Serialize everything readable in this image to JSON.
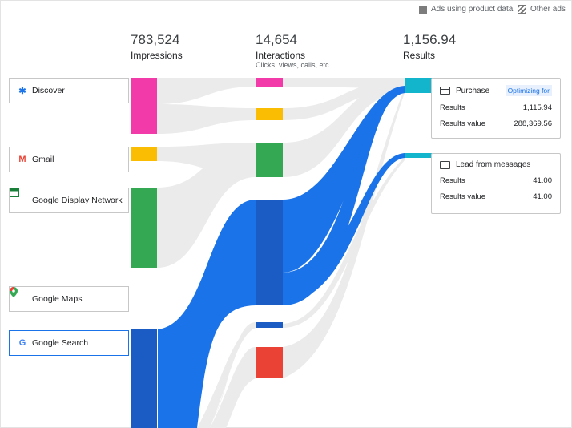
{
  "legend": {
    "product_data_label": "Ads using product data",
    "other_ads_label": "Other ads"
  },
  "stages": [
    {
      "value": "783,524",
      "label": "Impressions",
      "sublabel": ""
    },
    {
      "value": "14,654",
      "label": "Interactions",
      "sublabel": "Clicks, views, calls, etc."
    },
    {
      "value": "1,156.94",
      "label": "Results",
      "sublabel": ""
    }
  ],
  "sources": [
    {
      "name": "Discover",
      "color": "#F23BA8",
      "icon": "discover-icon",
      "icon_color": "#1a73e8"
    },
    {
      "name": "Gmail",
      "color": "#FBBC04",
      "icon": "gmail-icon",
      "icon_color": "#ea4335"
    },
    {
      "name": "Google Display Network",
      "color": "#34A853",
      "icon": "display-network-icon",
      "icon_color": "#188038"
    },
    {
      "name": "Google Maps",
      "color": "#34A853",
      "icon": "maps-pin-icon",
      "icon_color": "#34a853"
    },
    {
      "name": "Google Search",
      "color": "#1A5BC4",
      "icon": "google-g-icon",
      "icon_color": "#4285f4",
      "selected": true
    }
  ],
  "result_cards": [
    {
      "title": "Purchase",
      "icon": "credit-card-icon",
      "badge": "Optimizing for",
      "rows": [
        {
          "label": "Results",
          "value": "1,115.94"
        },
        {
          "label": "Results value",
          "value": "288,369.56"
        }
      ]
    },
    {
      "title": "Lead from messages",
      "icon": "message-icon",
      "badge": "",
      "rows": [
        {
          "label": "Results",
          "value": "41.00"
        },
        {
          "label": "Results value",
          "value": "41.00"
        }
      ]
    }
  ],
  "colors": {
    "flow_gray": "#EBEBEB",
    "flow_blue": "#1A73E8",
    "node_blue": "#1A5BC4",
    "result_teal": "#12B5CB",
    "interaction_red": "#EA4335"
  },
  "chart_data": {
    "type": "sankey",
    "title": "",
    "stages": [
      "Impressions",
      "Interactions",
      "Results"
    ],
    "totals": {
      "Impressions": 783524,
      "Interactions": 14654,
      "Results": 1156.94
    },
    "results": [
      {
        "name": "Purchase",
        "results": 1115.94,
        "results_value": 288369.56
      },
      {
        "name": "Lead from messages",
        "results": 41.0,
        "results_value": 41.0
      }
    ]
  }
}
